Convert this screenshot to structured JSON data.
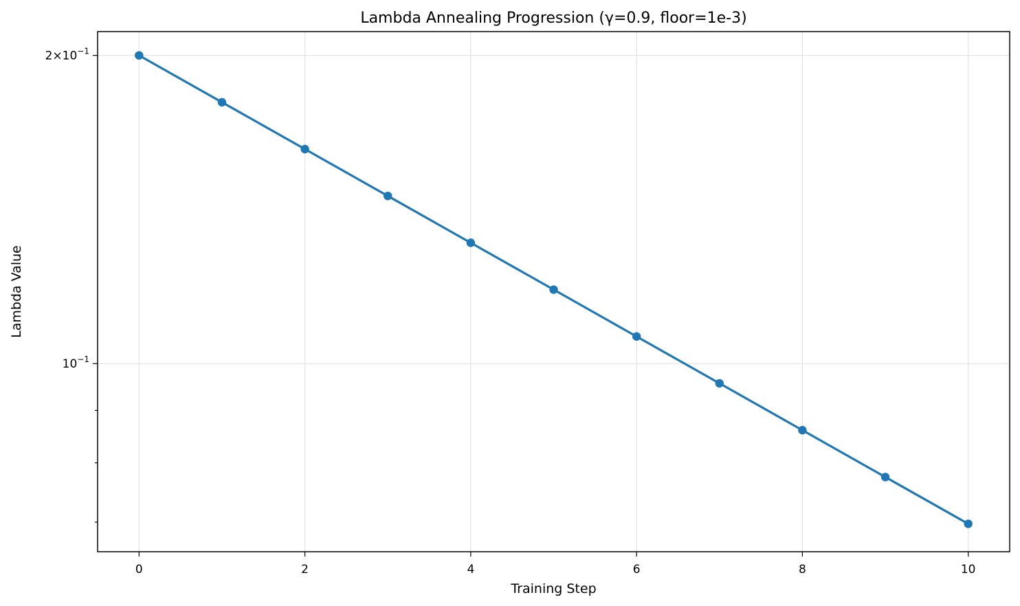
{
  "chart_data": {
    "type": "line",
    "title": "Lambda Annealing Progression (γ=0.9, floor=1e-3)",
    "xlabel": "Training Step",
    "ylabel": "Lambda Value",
    "x": [
      0,
      1,
      2,
      3,
      4,
      5,
      6,
      7,
      8,
      9,
      10
    ],
    "series": [
      {
        "values": [
          0.2,
          0.18,
          0.162,
          0.1458,
          0.13122,
          0.1181,
          0.10629,
          0.09566,
          0.08609,
          0.07748,
          0.06974
        ],
        "color": "#1f77b4",
        "marker": "circle"
      }
    ],
    "xlim": [
      -0.5,
      10.5
    ],
    "ylim": [
      0.0655,
      0.211
    ],
    "yscale": "log",
    "grid": true,
    "x_ticks": [
      {
        "value": 0,
        "label": "0"
      },
      {
        "value": 2,
        "label": "2"
      },
      {
        "value": 4,
        "label": "4"
      },
      {
        "value": 6,
        "label": "6"
      },
      {
        "value": 8,
        "label": "8"
      },
      {
        "value": 10,
        "label": "10"
      }
    ],
    "y_ticks": [
      {
        "value": 0.2,
        "mantissa": "2",
        "times": "×",
        "base": "10",
        "exp": "−1"
      },
      {
        "value": 0.1,
        "mantissa": "",
        "times": "",
        "base": "10",
        "exp": "−1"
      }
    ],
    "y_minor_ticks": [
      0.07,
      0.08,
      0.09
    ]
  }
}
